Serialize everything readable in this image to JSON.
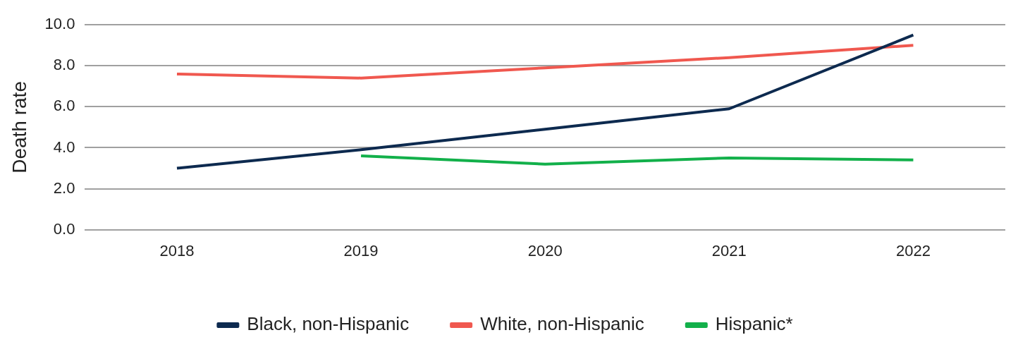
{
  "chart_data": {
    "type": "line",
    "ylabel": "Death rate",
    "categories": [
      "2018",
      "2019",
      "2020",
      "2021",
      "2022"
    ],
    "series": [
      {
        "name": "Black, non-Hispanic",
        "color": "#0d2a4f",
        "values": [
          3.0,
          3.9,
          4.9,
          5.9,
          9.5
        ]
      },
      {
        "name": "White, non-Hispanic",
        "color": "#f0584f",
        "values": [
          7.6,
          7.4,
          7.9,
          8.4,
          9.0
        ]
      },
      {
        "name": "Hispanic*",
        "color": "#12b04a",
        "values": [
          null,
          3.6,
          3.2,
          3.5,
          3.4
        ]
      }
    ],
    "ylim": [
      0,
      10
    ],
    "yticks": [
      {
        "value": 0,
        "label": "0.0"
      },
      {
        "value": 2,
        "label": "2.0"
      },
      {
        "value": 4,
        "label": "4.0"
      },
      {
        "value": 6,
        "label": "6.0"
      },
      {
        "value": 8,
        "label": "8.0"
      },
      {
        "value": 10,
        "label": "10.0"
      }
    ],
    "grid": "y",
    "legend": "bottom",
    "marker": "none",
    "line_style": "solid"
  }
}
